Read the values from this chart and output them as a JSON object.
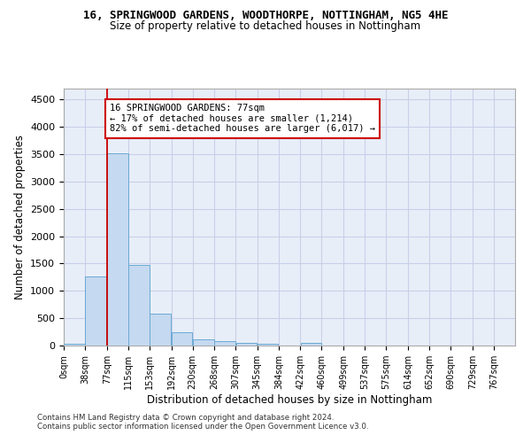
{
  "title_line1": "16, SPRINGWOOD GARDENS, WOODTHORPE, NOTTINGHAM, NG5 4HE",
  "title_line2": "Size of property relative to detached houses in Nottingham",
  "xlabel": "Distribution of detached houses by size in Nottingham",
  "ylabel": "Number of detached properties",
  "bar_color": "#c5d9f0",
  "bar_edge_color": "#6aaad4",
  "grid_color": "#c8d0e8",
  "bg_color": "#e8eef8",
  "annotation_line1": "16 SPRINGWOOD GARDENS: 77sqm",
  "annotation_line2": "← 17% of detached houses are smaller (1,214)",
  "annotation_line3": "82% of semi-detached houses are larger (6,017) →",
  "annotation_box_color": "#cc0000",
  "property_line_x": 77,
  "property_line_color": "#cc0000",
  "categories": [
    "0sqm",
    "38sqm",
    "77sqm",
    "115sqm",
    "153sqm",
    "192sqm",
    "230sqm",
    "268sqm",
    "307sqm",
    "345sqm",
    "384sqm",
    "422sqm",
    "460sqm",
    "499sqm",
    "537sqm",
    "575sqm",
    "614sqm",
    "652sqm",
    "690sqm",
    "729sqm",
    "767sqm"
  ],
  "bin_edges": [
    0,
    38,
    77,
    115,
    153,
    192,
    230,
    268,
    307,
    345,
    384,
    422,
    460,
    499,
    537,
    575,
    614,
    652,
    690,
    729,
    767
  ],
  "values": [
    30,
    1265,
    3510,
    1480,
    580,
    240,
    120,
    85,
    55,
    35,
    0,
    50,
    0,
    0,
    0,
    0,
    0,
    0,
    0,
    0,
    0
  ],
  "ylim": [
    0,
    4700
  ],
  "yticks": [
    0,
    500,
    1000,
    1500,
    2000,
    2500,
    3000,
    3500,
    4000,
    4500
  ],
  "footer_line1": "Contains HM Land Registry data © Crown copyright and database right 2024.",
  "footer_line2": "Contains public sector information licensed under the Open Government Licence v3.0."
}
